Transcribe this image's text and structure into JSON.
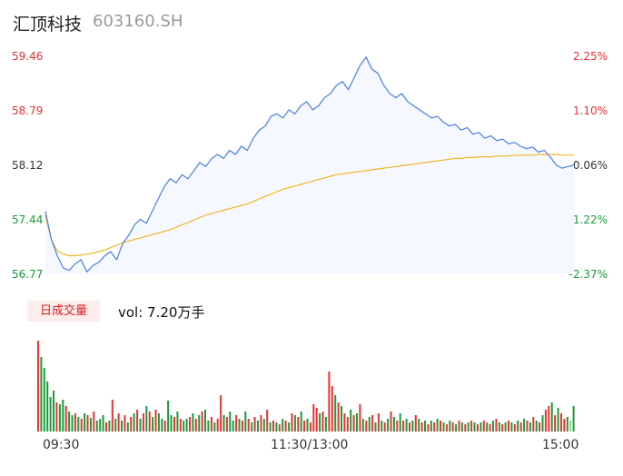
{
  "header": {
    "name": "汇顶科技",
    "code": "603160.SH"
  },
  "colors": {
    "up": "#e83232",
    "down": "#1a9a3a",
    "price_line": "#4a7fe0",
    "avg_line": "#f2b526",
    "neutral": "#333333"
  },
  "volume_panel": {
    "button_label": "日成交量",
    "vol_label": "vol: 7.20万手"
  },
  "chart_data": [
    {
      "type": "line",
      "title": "",
      "x_ticks": [
        "09:30",
        "11:30/13:00",
        "15:00"
      ],
      "y_ticks_left": [
        "59.46",
        "58.79",
        "58.12",
        "57.44",
        "56.77"
      ],
      "y_ticks_right": [
        "2.25%",
        "1.10%",
        "-0.06%",
        "-1.22%",
        "-2.37%"
      ],
      "ylim": [
        56.77,
        59.46
      ],
      "reference_price": 58.12,
      "series": [
        {
          "values": [
            57.55,
            57.2,
            57.0,
            56.85,
            56.82,
            56.9,
            56.95,
            56.8,
            56.88,
            56.92,
            57.0,
            57.05,
            56.95,
            57.15,
            57.25,
            57.38,
            57.45,
            57.4,
            57.55,
            57.7,
            57.85,
            57.95,
            57.9,
            58.0,
            57.95,
            58.05,
            58.15,
            58.1,
            58.2,
            58.25,
            58.2,
            58.3,
            58.25,
            58.35,
            58.3,
            58.45,
            58.55,
            58.6,
            58.72,
            58.75,
            58.7,
            58.8,
            58.75,
            58.85,
            58.9,
            58.8,
            58.85,
            58.95,
            59.0,
            59.1,
            59.15,
            59.05,
            59.2,
            59.35,
            59.45,
            59.3,
            59.25,
            59.1,
            59.0,
            58.95,
            59.0,
            58.9,
            58.85,
            58.8,
            58.75,
            58.7,
            58.72,
            58.65,
            58.6,
            58.62,
            58.55,
            58.58,
            58.5,
            58.52,
            58.45,
            58.48,
            58.42,
            58.44,
            58.38,
            58.4,
            58.35,
            58.32,
            58.34,
            58.28,
            58.3,
            58.22,
            58.12,
            58.08,
            58.1,
            58.12
          ],
          "color": "#4a7fe0"
        },
        {
          "values": [
            57.5,
            57.2,
            57.06,
            57.02,
            57.0,
            57.0,
            57.01,
            57.02,
            57.03,
            57.05,
            57.07,
            57.1,
            57.13,
            57.16,
            57.18,
            57.2,
            57.22,
            57.24,
            57.26,
            57.28,
            57.3,
            57.32,
            57.35,
            57.38,
            57.41,
            57.44,
            57.47,
            57.5,
            57.52,
            57.54,
            57.56,
            57.58,
            57.6,
            57.62,
            57.64,
            57.67,
            57.7,
            57.73,
            57.76,
            57.79,
            57.82,
            57.84,
            57.86,
            57.88,
            57.9,
            57.92,
            57.94,
            57.96,
            57.98,
            58.0,
            58.01,
            58.02,
            58.03,
            58.04,
            58.05,
            58.06,
            58.07,
            58.08,
            58.09,
            58.1,
            58.11,
            58.12,
            58.13,
            58.14,
            58.15,
            58.16,
            58.17,
            58.18,
            58.19,
            58.2,
            58.2,
            58.21,
            58.21,
            58.22,
            58.22,
            58.22,
            58.23,
            58.23,
            58.23,
            58.24,
            58.24,
            58.24,
            58.24,
            58.25,
            58.25,
            58.25,
            58.25,
            58.24,
            58.24,
            58.24
          ],
          "color": "#f2b526"
        }
      ]
    },
    {
      "type": "bar",
      "title": "",
      "x_ticks": [
        "09:30",
        "11:30/13:00",
        "15:00"
      ],
      "series": [
        {
          "name": "",
          "values": [
            100,
            82,
            70,
            55,
            38,
            45,
            32,
            30,
            35,
            28,
            22,
            18,
            20,
            16,
            14,
            20,
            18,
            15,
            22,
            12,
            14,
            18,
            10,
            12,
            35,
            14,
            20,
            12,
            18,
            10,
            16,
            20,
            24,
            14,
            20,
            28,
            22,
            16,
            24,
            20,
            14,
            12,
            34,
            18,
            16,
            22,
            14,
            12,
            14,
            16,
            20,
            14,
            18,
            22,
            24,
            12,
            16,
            10,
            14,
            40,
            18,
            16,
            22,
            12,
            18,
            14,
            12,
            22,
            14,
            10,
            16,
            12,
            18,
            14,
            24,
            10,
            12,
            10,
            8,
            14,
            12,
            10,
            20,
            18,
            16,
            22,
            12,
            14,
            10,
            30,
            26,
            20,
            22,
            16,
            66,
            50,
            40,
            32,
            28,
            20,
            16,
            24,
            18,
            20,
            30,
            14,
            12,
            16,
            18,
            10,
            20,
            12,
            10,
            14,
            22,
            16,
            12,
            20,
            12,
            14,
            10,
            12,
            18,
            14,
            10,
            12,
            8,
            12,
            10,
            14,
            12,
            10,
            8,
            12,
            10,
            8,
            12,
            10,
            8,
            10,
            12,
            10,
            8,
            10,
            12,
            10,
            8,
            12,
            14,
            10,
            8,
            10,
            12,
            10,
            8,
            12,
            10,
            14,
            12,
            10,
            16,
            12,
            10,
            18,
            24,
            28,
            32,
            18,
            26,
            20,
            14,
            16,
            12,
            28
          ],
          "colors": [
            "up",
            "down",
            "down",
            "down",
            "down",
            "down",
            "up",
            "down",
            "down",
            "up",
            "down",
            "down",
            "up",
            "down",
            "up",
            "down",
            "up",
            "down",
            "up",
            "down",
            "down",
            "down",
            "up",
            "down",
            "up",
            "down",
            "up",
            "down",
            "up",
            "down",
            "up",
            "down",
            "up",
            "down",
            "up",
            "down",
            "up",
            "down",
            "up",
            "down",
            "down",
            "up",
            "down",
            "down",
            "up",
            "down",
            "up",
            "down",
            "down",
            "up",
            "down",
            "up",
            "down",
            "up",
            "down",
            "down",
            "up",
            "down",
            "up",
            "up",
            "down",
            "up",
            "down",
            "down",
            "up",
            "down",
            "up",
            "down",
            "up",
            "down",
            "up",
            "down",
            "up",
            "down",
            "up",
            "down",
            "up",
            "down",
            "up",
            "down",
            "up",
            "down",
            "up",
            "down",
            "up",
            "down",
            "up",
            "down",
            "up",
            "up",
            "up",
            "down",
            "up",
            "down",
            "up",
            "up",
            "down",
            "up",
            "down",
            "up",
            "up",
            "down",
            "up",
            "down",
            "up",
            "down",
            "up",
            "down",
            "up",
            "down",
            "up",
            "down",
            "up",
            "down",
            "up",
            "down",
            "up",
            "down",
            "up",
            "down",
            "up",
            "down",
            "up",
            "down",
            "up",
            "down",
            "up",
            "down",
            "up",
            "down",
            "up",
            "down",
            "up",
            "down",
            "up",
            "down",
            "up",
            "down",
            "up",
            "down",
            "up",
            "down",
            "up",
            "down",
            "up",
            "down",
            "up",
            "down",
            "up",
            "down",
            "up",
            "down",
            "up",
            "down",
            "up",
            "down",
            "up",
            "down",
            "up",
            "down",
            "up",
            "down",
            "up",
            "down",
            "up",
            "up",
            "down",
            "up",
            "down",
            "up",
            "up",
            "down",
            "neutral"
          ]
        }
      ]
    }
  ]
}
